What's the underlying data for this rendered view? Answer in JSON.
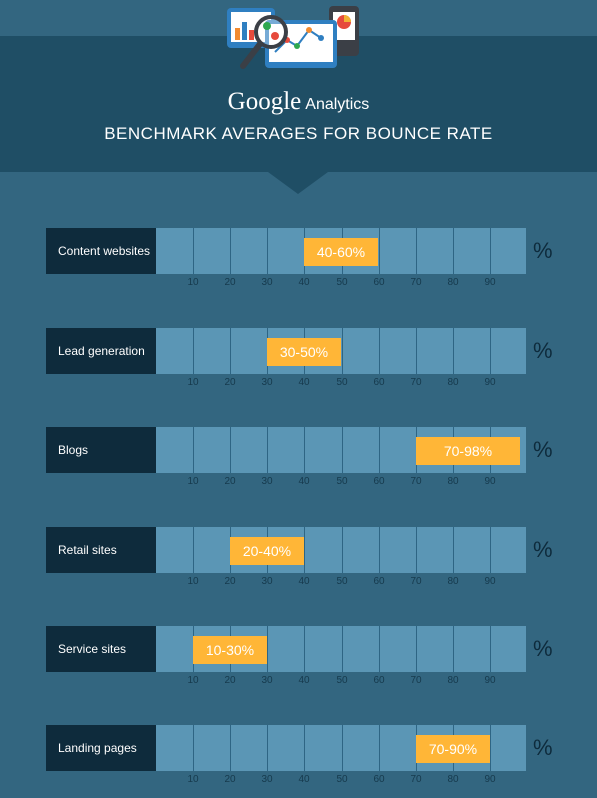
{
  "header": {
    "logo_google": "Google",
    "logo_analytics": "Analytics",
    "title": "BENCHMARK AVERAGES FOR BOUNCE RATE"
  },
  "chart_data": {
    "type": "bar",
    "title": "BENCHMARK AVERAGES FOR BOUNCE RATE",
    "unit": "%",
    "xlim": [
      0,
      100
    ],
    "ticks": [
      10,
      20,
      30,
      40,
      50,
      60,
      70,
      80,
      90
    ],
    "categories": [
      "Content websites",
      "Lead generation",
      "Blogs",
      "Retail sites",
      "Service sites",
      "Landing pages"
    ],
    "ranges": [
      {
        "label": "40-60%",
        "low": 40,
        "high": 60
      },
      {
        "label": "30-50%",
        "low": 30,
        "high": 50
      },
      {
        "label": "70-98%",
        "low": 70,
        "high": 98
      },
      {
        "label": "20-40%",
        "low": 20,
        "high": 40
      },
      {
        "label": "10-30%",
        "low": 10,
        "high": 30
      },
      {
        "label": "70-90%",
        "low": 70,
        "high": 90
      }
    ]
  },
  "colors": {
    "background": "#336680",
    "header": "#1f4e65",
    "label_bg": "#0e2b3c",
    "track": "#5b96b5",
    "range": "#ffb637"
  }
}
